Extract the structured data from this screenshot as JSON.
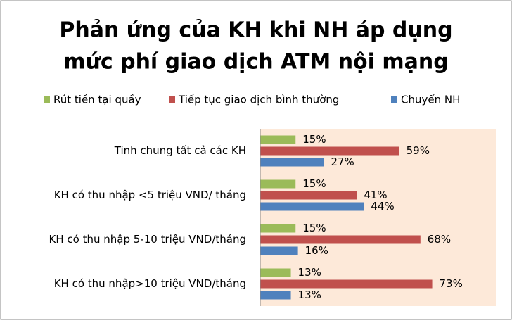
{
  "chart_data": {
    "type": "hbar",
    "title": [
      "Phản ứng của KH khi NH áp dụng",
      "mức phí giao dịch ATM nội mạng"
    ],
    "categories": [
      "Tinh chung tất cả các KH",
      "KH có thu nhập <5 triệu VND/ tháng",
      "KH có thu nhập 5-10 triệu VND/tháng",
      "KH có thu nhập>10 triệu VND/tháng"
    ],
    "series": [
      {
        "name": "Rút tiền tại quầy",
        "color": "#9bbb59",
        "values": [
          15,
          15,
          15,
          13
        ],
        "value_labels": [
          "15%",
          "15%",
          "15%",
          "13%"
        ]
      },
      {
        "name": "Tiếp tục giao dịch bình thường",
        "color": "#c0504d",
        "values": [
          59,
          41,
          68,
          73
        ],
        "value_labels": [
          "59%",
          "41%",
          "68%",
          "73%"
        ]
      },
      {
        "name": "Chuyển NH",
        "color": "#4f81bd",
        "values": [
          27,
          44,
          16,
          13
        ],
        "value_labels": [
          "27%",
          "44%",
          "16%",
          "13%"
        ]
      }
    ],
    "xlim": [
      0,
      100
    ],
    "plot_background": "#fde9d9"
  }
}
